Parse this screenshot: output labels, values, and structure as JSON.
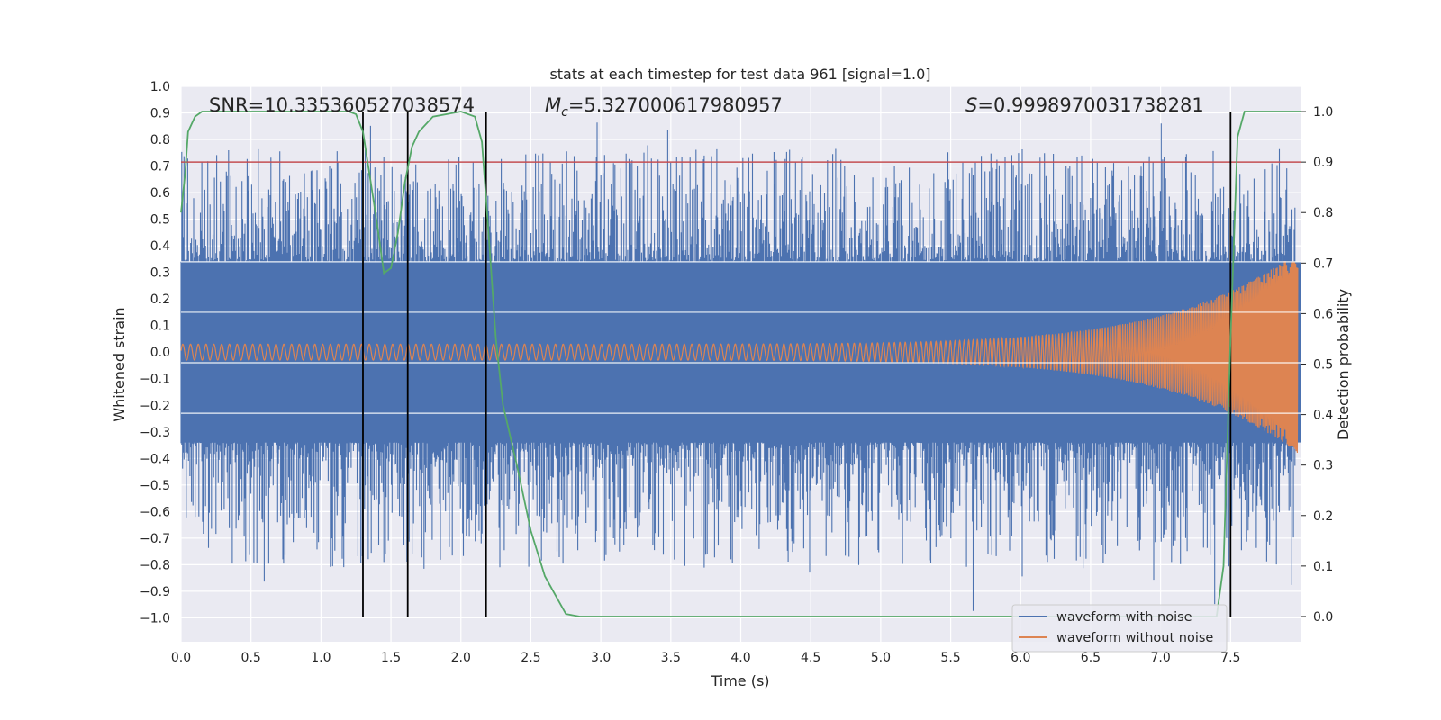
{
  "chart_data": {
    "type": "line",
    "title": "stats at each timestep for test data 961 [signal=1.0]",
    "xlabel": "Time (s)",
    "ylabel": "Whitened strain",
    "y2label": "Detection probability",
    "xlim": [
      0.0,
      8.0
    ],
    "ylim": [
      -1.09,
      1.0
    ],
    "y2lim": [
      -0.05,
      1.05
    ],
    "xticks": [
      "0.0",
      "0.5",
      "1.0",
      "1.5",
      "2.0",
      "2.5",
      "3.0",
      "3.5",
      "4.0",
      "4.5",
      "5.0",
      "5.5",
      "6.0",
      "6.5",
      "7.0",
      "7.5"
    ],
    "yticks": [
      "1.0",
      "0.9",
      "0.8",
      "0.7",
      "0.6",
      "0.5",
      "0.4",
      "0.3",
      "0.2",
      "0.1",
      "0.0",
      "−0.1",
      "−0.2",
      "−0.3",
      "−0.4",
      "−0.5",
      "−0.6",
      "−0.7",
      "−0.8",
      "−0.9",
      "−1.0"
    ],
    "y2ticks": [
      "1.0",
      "0.9",
      "0.8",
      "0.7",
      "0.6",
      "0.5",
      "0.4",
      "0.3",
      "0.2",
      "0.1",
      "0.0"
    ],
    "annotations": {
      "snr": "SNR=10.335360527038574",
      "mc_symbol": "M",
      "mc_sub": "c",
      "mc_value": "=5.327000617980957",
      "s_symbol": "S",
      "s_value": "=0.9998970031738281"
    },
    "threshold": 0.9,
    "vlines": [
      1.3,
      1.62,
      2.18,
      7.5
    ],
    "detection_probability": {
      "x": [
        0.0,
        0.03,
        0.05,
        0.1,
        0.15,
        0.25,
        0.5,
        0.8,
        1.0,
        1.2,
        1.25,
        1.3,
        1.35,
        1.4,
        1.45,
        1.5,
        1.55,
        1.6,
        1.65,
        1.7,
        1.8,
        2.0,
        2.1,
        2.15,
        2.2,
        2.25,
        2.3,
        2.4,
        2.5,
        2.6,
        2.7,
        2.75,
        2.85,
        3.0,
        4.0,
        5.0,
        6.0,
        7.0,
        7.35,
        7.4,
        7.45,
        7.5,
        7.55,
        7.6,
        7.7,
        8.0
      ],
      "y": [
        0.8,
        0.88,
        0.96,
        0.99,
        1.0,
        1.0,
        1.0,
        1.0,
        1.0,
        1.0,
        0.995,
        0.96,
        0.87,
        0.78,
        0.68,
        0.69,
        0.76,
        0.86,
        0.93,
        0.96,
        0.99,
        1.0,
        0.99,
        0.94,
        0.75,
        0.55,
        0.42,
        0.3,
        0.17,
        0.08,
        0.03,
        0.005,
        0.0,
        0.0,
        0.0,
        0.0,
        0.0,
        0.0,
        0.0,
        0.0,
        0.1,
        0.55,
        0.95,
        1.0,
        1.0,
        1.0
      ]
    },
    "series": [
      {
        "name": "waveform with noise",
        "color": "#4c72b0",
        "envelope_core": 0.34,
        "peak_max": 0.93,
        "peak_min": -1.0
      },
      {
        "name": "waveform without noise",
        "color": "#dd8452",
        "amplitude_start": 0.03,
        "amplitude_end": 0.38,
        "chirp": true
      }
    ],
    "detection_color": "#55a868",
    "threshold_color": "#c44e52",
    "vline_color": "#000000",
    "grid": true,
    "legend_position": "lower-right",
    "background": "#eaeaf2"
  }
}
